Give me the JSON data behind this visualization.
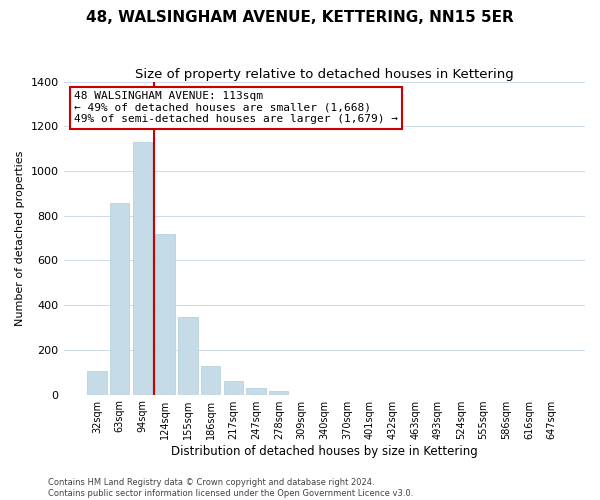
{
  "title": "48, WALSINGHAM AVENUE, KETTERING, NN15 5ER",
  "subtitle": "Size of property relative to detached houses in Kettering",
  "xlabel": "Distribution of detached houses by size in Kettering",
  "ylabel": "Number of detached properties",
  "bar_labels": [
    "32sqm",
    "63sqm",
    "94sqm",
    "124sqm",
    "155sqm",
    "186sqm",
    "217sqm",
    "247sqm",
    "278sqm",
    "309sqm",
    "340sqm",
    "370sqm",
    "401sqm",
    "432sqm",
    "463sqm",
    "493sqm",
    "524sqm",
    "555sqm",
    "586sqm",
    "616sqm",
    "647sqm"
  ],
  "bar_values": [
    105,
    855,
    1130,
    720,
    345,
    130,
    60,
    30,
    18,
    0,
    0,
    0,
    0,
    0,
    0,
    0,
    0,
    0,
    0,
    0,
    0
  ],
  "bar_color": "#c5dce8",
  "bar_edge_color": "#b0ccd8",
  "vline_color": "#cc0000",
  "annotation_title": "48 WALSINGHAM AVENUE: 113sqm",
  "annotation_line1": "← 49% of detached houses are smaller (1,668)",
  "annotation_line2": "49% of semi-detached houses are larger (1,679) →",
  "annotation_box_color": "#ffffff",
  "annotation_box_edge": "#cc0000",
  "ylim": [
    0,
    1400
  ],
  "yticks": [
    0,
    200,
    400,
    600,
    800,
    1000,
    1200,
    1400
  ],
  "footer_line1": "Contains HM Land Registry data © Crown copyright and database right 2024.",
  "footer_line2": "Contains public sector information licensed under the Open Government Licence v3.0.",
  "background_color": "#ffffff",
  "grid_color": "#ccd9e8",
  "title_fontsize": 11,
  "subtitle_fontsize": 9.5
}
